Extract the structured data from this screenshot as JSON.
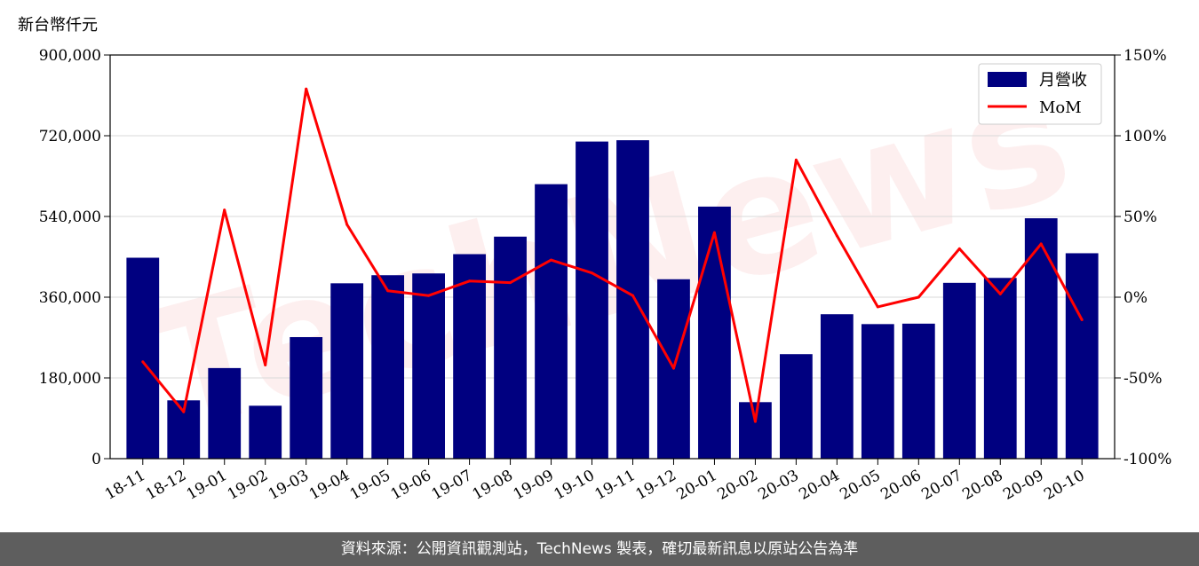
{
  "chart_data": {
    "type": "bar+line",
    "y_left_unit": "新台幣仟元",
    "categories": [
      "18-11",
      "18-12",
      "19-01",
      "19-02",
      "19-03",
      "19-04",
      "19-05",
      "19-06",
      "19-07",
      "19-08",
      "19-09",
      "19-10",
      "19-11",
      "19-12",
      "20-01",
      "20-02",
      "20-03",
      "20-04",
      "20-05",
      "20-06",
      "20-07",
      "20-08",
      "20-09",
      "20-10"
    ],
    "series": [
      {
        "name": "月營收",
        "axis": "left",
        "kind": "bar",
        "color": "#000080",
        "values": [
          448000,
          130000,
          202000,
          118000,
          271000,
          391000,
          409000,
          413000,
          456000,
          495000,
          612000,
          707000,
          710000,
          400000,
          562000,
          126000,
          233000,
          322000,
          300000,
          301000,
          392000,
          403000,
          536000,
          458000
        ]
      },
      {
        "name": "MoM",
        "axis": "right",
        "kind": "line",
        "color": "#ff0000",
        "values": [
          -40,
          -71,
          54,
          -42,
          129,
          45,
          4,
          1,
          10,
          9,
          23,
          15,
          1,
          -44,
          40,
          -77,
          85,
          38,
          -6,
          0,
          30,
          2,
          33,
          -14
        ]
      }
    ],
    "y_left": {
      "min": 0,
      "max": 900000,
      "ticks": [
        "0",
        "180,000",
        "360,000",
        "540,000",
        "720,000",
        "900,000"
      ]
    },
    "y_right": {
      "min": -100,
      "max": 150,
      "ticks": [
        "-100%",
        "-50%",
        "0%",
        "50%",
        "100%",
        "150%"
      ]
    },
    "grid": "horizontal",
    "legend_position": "top-right"
  },
  "watermark_text": "TechNews",
  "footer_text": "資料來源：公開資訊觀測站，TechNews 製表，確切最新訊息以原站公告為準"
}
